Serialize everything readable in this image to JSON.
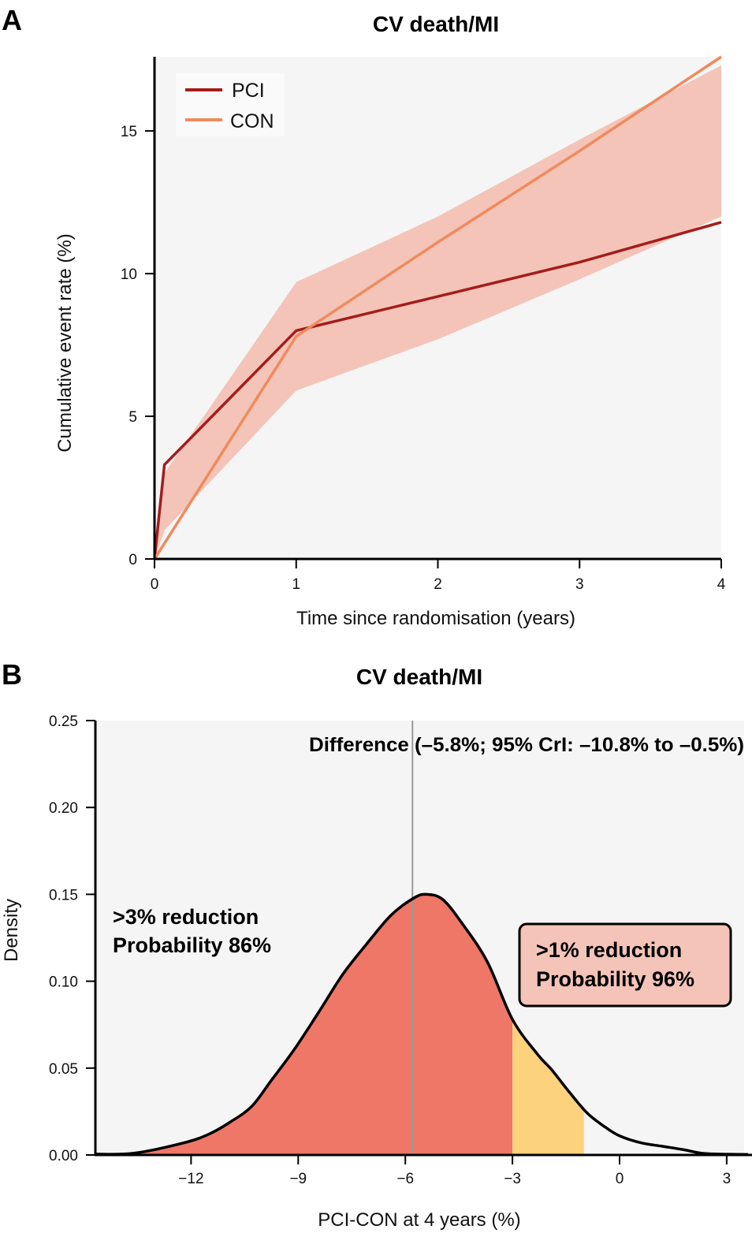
{
  "chart_data": [
    {
      "panel": "A",
      "type": "line",
      "title": "CV death/MI",
      "xlabel": "Time since randomisation (years)",
      "ylabel": "Cumulative event rate (%)",
      "xlim": [
        0,
        4
      ],
      "ylim": [
        0,
        17.6
      ],
      "xticks": [
        "0",
        "1",
        "2",
        "3",
        "4"
      ],
      "yticks": [
        "0",
        "5",
        "10",
        "15"
      ],
      "grid": false,
      "legend": {
        "position": "top-left",
        "entries": [
          "PCI",
          "CON"
        ]
      },
      "series": [
        {
          "name": "PCI",
          "color": "#a51c1c",
          "x": [
            0,
            0.07,
            1,
            2,
            3,
            4
          ],
          "y": [
            0,
            3.3,
            8.0,
            9.2,
            10.4,
            11.8
          ]
        },
        {
          "name": "CON",
          "color": "#f08a5d",
          "x": [
            0,
            1,
            2,
            3,
            4
          ],
          "y": [
            0,
            7.8,
            11.1,
            14.3,
            17.6
          ]
        }
      ],
      "band": {
        "name": "Credible interval",
        "color": "#f4c4b8",
        "x": [
          0,
          0.07,
          1,
          2,
          3,
          4
        ],
        "lower": [
          0,
          1.0,
          5.9,
          7.7,
          9.8,
          12.0
        ],
        "upper": [
          0,
          3.0,
          9.7,
          12.0,
          14.7,
          17.3
        ]
      }
    },
    {
      "panel": "B",
      "type": "area",
      "title": "CV death/MI",
      "xlabel": "PCI-CON at 4 years (%)",
      "ylabel": "Density",
      "xlim": [
        -14.7,
        3.6
      ],
      "ylim": [
        0,
        0.25
      ],
      "xticks": [
        "−12",
        "−9",
        "−6",
        "−3",
        "0",
        "3"
      ],
      "yticks": [
        "0.00",
        "0.05",
        "0.10",
        "0.15",
        "0.20",
        "0.25"
      ],
      "grid": false,
      "density": {
        "x": [
          -14.7,
          -13.6,
          -12.2,
          -11.5,
          -10.9,
          -10.3,
          -9.75,
          -9.1,
          -8.4,
          -7.75,
          -7.1,
          -6.4,
          -5.75,
          -5.4,
          -4.95,
          -4.4,
          -3.7,
          -3.0,
          -2.3,
          -1.9,
          -1.4,
          -0.9,
          -0.4,
          0.0,
          0.6,
          1.2,
          1.8,
          2.3,
          2.8,
          3.6
        ],
        "y": [
          0.0005,
          0.001,
          0.007,
          0.012,
          0.019,
          0.028,
          0.043,
          0.061,
          0.083,
          0.104,
          0.121,
          0.138,
          0.148,
          0.15,
          0.147,
          0.133,
          0.111,
          0.078,
          0.058,
          0.049,
          0.036,
          0.024,
          0.016,
          0.011,
          0.007,
          0.005,
          0.003,
          0.001,
          0.0005,
          0.0003
        ]
      },
      "regions": [
        {
          "name": ">3% reduction",
          "from": -14.7,
          "to": -3.0,
          "color": "#ee7767"
        },
        {
          "name": ">1% reduction (additional)",
          "from": -3.0,
          "to": -1.0,
          "color": "#fdd27c"
        }
      ],
      "median_line": {
        "x": -5.8,
        "color": "#999999"
      },
      "annotations": {
        "difference": "Difference (–5.8%; 95% CrI: –10.8% to –0.5%)",
        "left_line1": ">3% reduction",
        "left_line2": "Probability 86%",
        "right_line1": ">1% reduction",
        "right_line2": "Probability 96%"
      },
      "box_color": "#f4c4b8"
    }
  ],
  "panels": {
    "a_letter": "A",
    "b_letter": "B"
  }
}
